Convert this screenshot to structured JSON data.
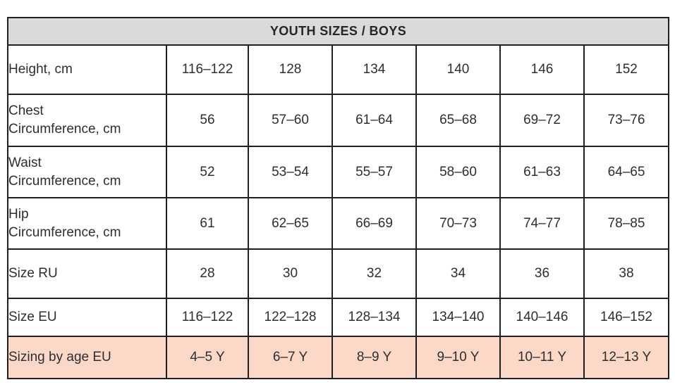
{
  "title": "YOUTH SIZES / BOYS",
  "colors": {
    "header_bg": "#dadada",
    "highlight_bg": "#fbd8c8",
    "border": "#1f1f1f",
    "text": "#2e2e2e"
  },
  "chart_data": {
    "type": "table",
    "title": "YOUTH SIZES / BOYS",
    "row_labels": [
      "Height, cm",
      "Chest Circumference, cm",
      "Waist Circumference, cm",
      "Hip Circumference, cm",
      "Size RU",
      "Size EU",
      "Sizing by age EU"
    ],
    "rows": [
      [
        "116–122",
        "128",
        "134",
        "140",
        "146",
        "152"
      ],
      [
        "56",
        "57–60",
        "61–64",
        "65–68",
        "69–72",
        "73–76"
      ],
      [
        "52",
        "53–54",
        "55–57",
        "58–60",
        "61–63",
        "64–65"
      ],
      [
        "61",
        "62–65",
        "66–69",
        "70–73",
        "74–77",
        "78–85"
      ],
      [
        "28",
        "30",
        "32",
        "34",
        "36",
        "38"
      ],
      [
        "116–122",
        "122–128",
        "128–134",
        "134–140",
        "140–146",
        "146–152"
      ],
      [
        "4–5 Y",
        "6–7 Y",
        "8–9 Y",
        "9–10 Y",
        "10–11 Y",
        "12–13 Y"
      ]
    ]
  },
  "table": {
    "rows": [
      {
        "label": "Height, cm",
        "values": [
          "116–122",
          "128",
          "134",
          "140",
          "146",
          "152"
        ],
        "highlight": false
      },
      {
        "label": "Chest\nCircumference, cm",
        "values": [
          "56",
          "57–60",
          "61–64",
          "65–68",
          "69–72",
          "73–76"
        ],
        "highlight": false
      },
      {
        "label": "Waist\nCircumference, cm",
        "values": [
          "52",
          "53–54",
          "55–57",
          "58–60",
          "61–63",
          "64–65"
        ],
        "highlight": false
      },
      {
        "label": "Hip\nCircumference, cm",
        "values": [
          "61",
          "62–65",
          "66–69",
          "70–73",
          "74–77",
          "78–85"
        ],
        "highlight": false
      },
      {
        "label": "Size RU",
        "values": [
          "28",
          "30",
          "32",
          "34",
          "36",
          "38"
        ],
        "highlight": false
      },
      {
        "label": "Size EU",
        "values": [
          "116–122",
          "122–128",
          "128–134",
          "134–140",
          "140–146",
          "146–152"
        ],
        "highlight": false
      },
      {
        "label": "Sizing by age EU",
        "values": [
          "4–5 Y",
          "6–7 Y",
          "8–9 Y",
          "9–10 Y",
          "10–11 Y",
          "12–13 Y"
        ],
        "highlight": true
      }
    ]
  }
}
